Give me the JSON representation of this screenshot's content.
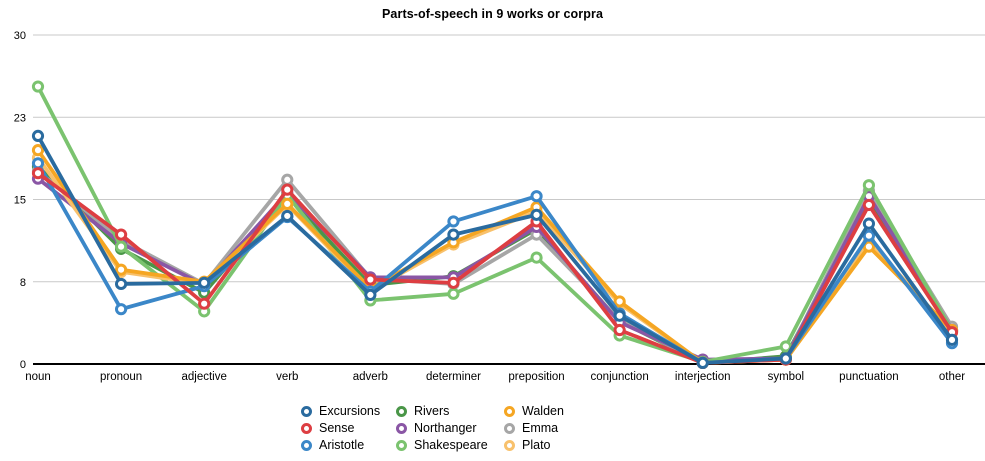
{
  "title": "Parts-of-speech in 9 works or corpra",
  "chart_data": {
    "type": "line",
    "title": "Parts-of-speech in 9 works or corpra",
    "categories": [
      "noun",
      "pronoun",
      "adjective",
      "verb",
      "adverb",
      "determiner",
      "preposition",
      "conjunction",
      "interjection",
      "symbol",
      "punctuation",
      "other"
    ],
    "y_axis": {
      "min": 0,
      "max": 30,
      "ticks": [
        {
          "label": "0",
          "value": 0
        },
        {
          "label": "8",
          "value": 7.5
        },
        {
          "label": "15",
          "value": 15
        },
        {
          "label": "23",
          "value": 22.5
        },
        {
          "label": "30",
          "value": 30
        }
      ]
    },
    "grid": true,
    "legend_position": "bottom",
    "marker_style": "open-circle",
    "series": [
      {
        "name": "Excursions",
        "color": "#2a6b9f",
        "values": [
          20.8,
          7.3,
          7.4,
          13.5,
          6.3,
          11.8,
          13.6,
          4.4,
          0.1,
          0.5,
          12.8,
          2.2
        ]
      },
      {
        "name": "Sense",
        "color": "#dd3e42",
        "values": [
          17.4,
          11.8,
          5.5,
          15.9,
          7.7,
          7.4,
          13.0,
          3.1,
          0.1,
          0.4,
          14.5,
          2.9
        ]
      },
      {
        "name": "Aristotle",
        "color": "#3b87c8",
        "values": [
          18.3,
          5.0,
          7.1,
          13.4,
          6.6,
          13.0,
          15.3,
          4.6,
          0.1,
          0.5,
          11.7,
          1.9
        ]
      },
      {
        "name": "Rivers",
        "color": "#4a9648",
        "values": [
          18.0,
          10.5,
          6.5,
          15.3,
          7.2,
          8.0,
          12.3,
          3.9,
          0.1,
          0.7,
          15.0,
          3.0
        ]
      },
      {
        "name": "Northanger",
        "color": "#8a56a5",
        "values": [
          16.9,
          11.0,
          7.2,
          15.6,
          7.9,
          7.9,
          12.5,
          3.8,
          0.4,
          0.5,
          15.3,
          3.1
        ]
      },
      {
        "name": "Shakespeare",
        "color": "#7bc36f",
        "values": [
          25.3,
          10.7,
          4.8,
          15.4,
          5.8,
          6.4,
          9.7,
          2.6,
          0.2,
          1.6,
          16.3,
          3.0
        ]
      },
      {
        "name": "Walden",
        "color": "#f5a623",
        "values": [
          19.5,
          8.6,
          7.5,
          14.6,
          6.9,
          11.1,
          14.3,
          5.7,
          0.1,
          0.4,
          10.7,
          3.1
        ]
      },
      {
        "name": "Emma",
        "color": "#a6a6a6",
        "values": [
          17.6,
          11.3,
          7.3,
          16.8,
          7.8,
          7.3,
          11.8,
          4.0,
          0.1,
          0.5,
          15.8,
          3.4
        ]
      },
      {
        "name": "Plato",
        "color": "#f8c16c",
        "values": [
          18.8,
          8.4,
          7.3,
          14.5,
          6.7,
          10.9,
          13.9,
          5.5,
          0.1,
          0.4,
          11.2,
          2.9
        ]
      }
    ]
  }
}
